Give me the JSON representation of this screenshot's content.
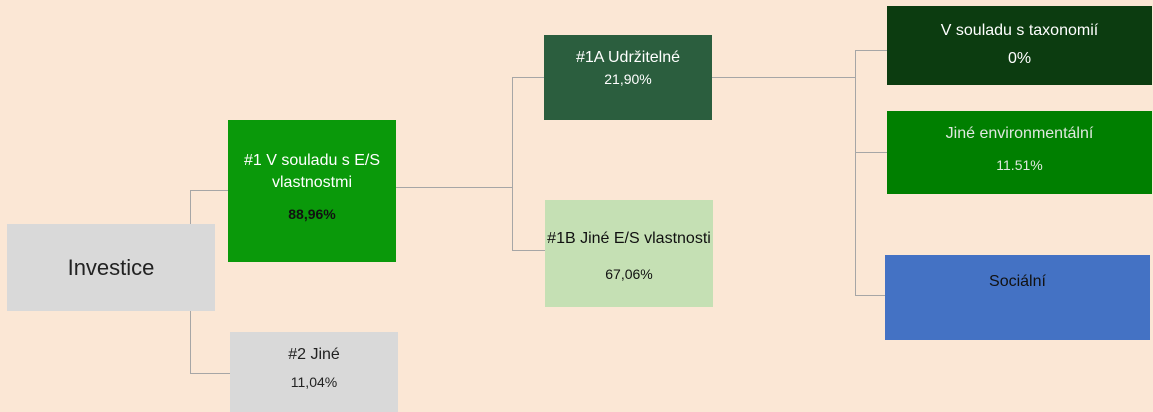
{
  "nodes": [
    {
      "label": "Investice"
    },
    {
      "label": "#1 V souladu s E/S vlastnostmi",
      "value": "88,96%"
    },
    {
      "label": "#2 Jiné",
      "value": "11,04%"
    },
    {
      "label": "#1A Udržitelné",
      "value": "21,90%"
    },
    {
      "label": "#1B Jiné E/S vlastnosti",
      "value": "67,06%"
    },
    {
      "label": "V souladu s taxonomií",
      "value": "0%"
    },
    {
      "label": "Jiné environmentální",
      "value": "11.51%"
    },
    {
      "label": "Sociální"
    }
  ]
}
